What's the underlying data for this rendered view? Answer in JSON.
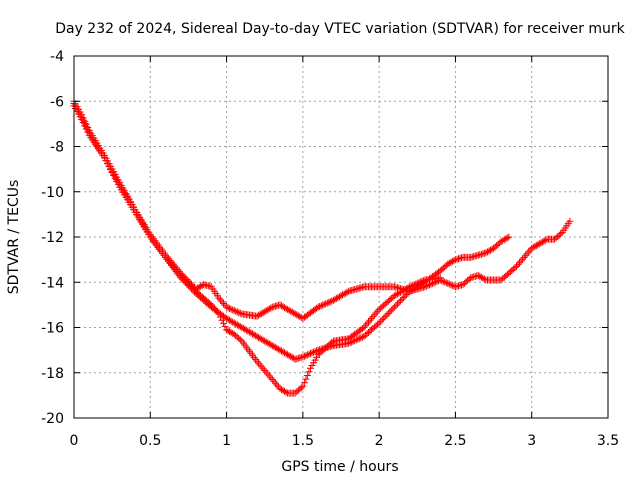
{
  "chart_data": {
    "type": "scatter",
    "title": "Day 232 of 2024, Sidereal Day-to-day VTEC variation (SDTVAR) for receiver murk",
    "xlabel": "GPS time / hours",
    "ylabel": "SDTVAR / TECUs",
    "xlim": [
      0,
      3.5
    ],
    "ylim": [
      -20,
      -4
    ],
    "xticks": [
      0,
      0.5,
      1,
      1.5,
      2,
      2.5,
      3,
      3.5
    ],
    "xtick_labels": [
      "0",
      "0.5",
      "1",
      "1.5",
      "2",
      "2.5",
      "3",
      "3.5"
    ],
    "yticks": [
      -20,
      -18,
      -16,
      -14,
      -12,
      -10,
      -8,
      -6,
      -4
    ],
    "ytick_labels": [
      "-20",
      "-18",
      "-16",
      "-14",
      "-12",
      "-10",
      "-8",
      "-6",
      "-4"
    ],
    "grid": true,
    "marker": "+",
    "color": "#ff0000",
    "series": [
      {
        "x": [
          0.0,
          0.05,
          0.1,
          0.2,
          0.3,
          0.4,
          0.5,
          0.6,
          0.7,
          0.8,
          0.85,
          0.9,
          0.95,
          1.0,
          1.1,
          1.2,
          1.25,
          1.3,
          1.35,
          1.4,
          1.5,
          1.6,
          1.7,
          1.8,
          1.9,
          2.0,
          2.1,
          2.2,
          2.3,
          2.4,
          2.45,
          2.5,
          2.55,
          2.6,
          2.7,
          2.75,
          2.8,
          2.85
        ],
        "y": [
          -6.0,
          -6.6,
          -7.3,
          -8.4,
          -9.6,
          -10.8,
          -11.9,
          -12.8,
          -13.6,
          -14.3,
          -14.1,
          -14.2,
          -14.7,
          -15.1,
          -15.4,
          -15.5,
          -15.3,
          -15.1,
          -15.0,
          -15.2,
          -15.6,
          -15.1,
          -14.8,
          -14.4,
          -14.2,
          -14.2,
          -14.2,
          -14.4,
          -14.0,
          -13.5,
          -13.2,
          -13.0,
          -12.9,
          -12.9,
          -12.7,
          -12.5,
          -12.2,
          -12.0
        ]
      },
      {
        "x": [
          0.0,
          0.05,
          0.1,
          0.2,
          0.3,
          0.4,
          0.5,
          0.6,
          0.7,
          0.8,
          0.9,
          1.0,
          1.1,
          1.2,
          1.3,
          1.4,
          1.45,
          1.5,
          1.6,
          1.7,
          1.8,
          1.9,
          2.0,
          2.1,
          2.2,
          2.3,
          2.4,
          2.5,
          2.55,
          2.6,
          2.65,
          2.7,
          2.8,
          2.9,
          3.0,
          3.1,
          3.15,
          3.2,
          3.25
        ],
        "y": [
          -6.1,
          -6.7,
          -7.4,
          -8.5,
          -9.7,
          -10.8,
          -12.0,
          -12.9,
          -13.8,
          -14.5,
          -15.1,
          -15.6,
          -16.0,
          -16.4,
          -16.8,
          -17.2,
          -17.4,
          -17.3,
          -17.0,
          -16.8,
          -16.7,
          -16.4,
          -15.8,
          -15.1,
          -14.4,
          -14.2,
          -13.9,
          -14.2,
          -14.1,
          -13.8,
          -13.7,
          -13.9,
          -13.9,
          -13.3,
          -12.5,
          -12.1,
          -12.1,
          -11.8,
          -11.3
        ]
      },
      {
        "x": [
          0.0,
          0.05,
          0.1,
          0.2,
          0.3,
          0.4,
          0.5,
          0.6,
          0.7,
          0.8,
          0.9,
          0.95,
          1.0,
          1.05,
          1.1,
          1.2,
          1.3,
          1.35,
          1.4,
          1.45,
          1.5,
          1.55,
          1.6,
          1.7,
          1.8,
          1.9,
          2.0,
          2.1,
          2.2,
          2.3,
          2.4
        ],
        "y": [
          -6.2,
          -6.8,
          -7.5,
          -8.5,
          -9.8,
          -10.9,
          -12.0,
          -12.9,
          -13.7,
          -14.4,
          -15.0,
          -15.4,
          -16.1,
          -16.3,
          -16.6,
          -17.5,
          -18.3,
          -18.7,
          -18.9,
          -18.9,
          -18.6,
          -17.8,
          -17.2,
          -16.6,
          -16.5,
          -16.0,
          -15.2,
          -14.6,
          -14.2,
          -13.9,
          -13.8
        ]
      }
    ]
  }
}
